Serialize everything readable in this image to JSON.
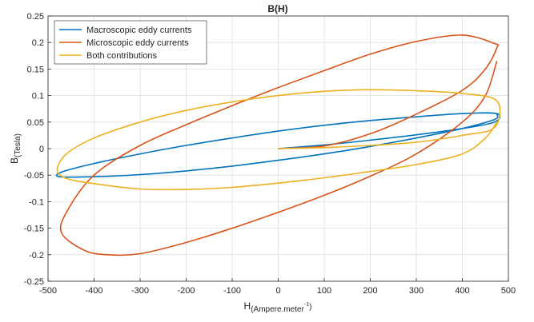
{
  "chart_data": {
    "type": "line",
    "title": "B(H)",
    "xlabel": {
      "main": "H",
      "sub": "(Ampere.meter",
      "sup": "-1",
      "close": ")"
    },
    "ylabel": {
      "main": "B",
      "sub": "(Tesla)"
    },
    "xlim": [
      -500,
      500
    ],
    "ylim": [
      -0.25,
      0.25
    ],
    "xticks": [
      -500,
      -400,
      -300,
      -200,
      -100,
      0,
      100,
      200,
      300,
      400,
      500
    ],
    "xtick_labels": [
      "-500",
      "-400",
      "-300",
      "-200",
      "-100",
      "0",
      "100",
      "200",
      "300",
      "400",
      "500"
    ],
    "yticks": [
      -0.25,
      -0.2,
      -0.15,
      -0.1,
      -0.05,
      0,
      0.05,
      0.1,
      0.15,
      0.2,
      0.25
    ],
    "ytick_labels": [
      "-0.25",
      "-0.2",
      "-0.15",
      "-0.1",
      "-0.05",
      "0",
      "0.05",
      "0.1",
      "0.15",
      "0.2",
      "0.25"
    ],
    "grid": true,
    "legend_position": "top-left",
    "series": [
      {
        "name": "Macroscopic eddy currents",
        "color": "#0072BD",
        "x": [
          0,
          100,
          200,
          300,
          400,
          470,
          475,
          400,
          300,
          200,
          100,
          0,
          -100,
          -200,
          -300,
          -400,
          -470,
          -475,
          -400,
          -300,
          -200,
          -100,
          0,
          100,
          200,
          300,
          400,
          470,
          475
        ],
        "y": [
          0,
          0.007,
          0.016,
          0.026,
          0.038,
          0.05,
          0.066,
          0.066,
          0.06,
          0.053,
          0.044,
          0.033,
          0.02,
          0.006,
          -0.01,
          -0.028,
          -0.044,
          -0.053,
          -0.053,
          -0.049,
          -0.042,
          -0.033,
          -0.022,
          -0.01,
          0.004,
          0.02,
          0.038,
          0.055,
          0.065
        ]
      },
      {
        "name": "Microscopic eddy currents",
        "color": "#D95319",
        "x": [
          0,
          100,
          200,
          300,
          400,
          450,
          475,
          470,
          400,
          300,
          200,
          100,
          0,
          -100,
          -200,
          -300,
          -400,
          -460,
          -470,
          -420,
          -370,
          -300,
          -200,
          -100,
          0,
          100,
          200,
          300,
          400,
          450,
          475
        ],
        "y": [
          0,
          0.005,
          0.028,
          0.065,
          0.11,
          0.15,
          0.19,
          0.198,
          0.214,
          0.202,
          0.178,
          0.147,
          0.115,
          0.081,
          0.045,
          0.006,
          -0.05,
          -0.12,
          -0.16,
          -0.192,
          -0.2,
          -0.198,
          -0.177,
          -0.15,
          -0.12,
          -0.088,
          -0.052,
          -0.01,
          0.05,
          0.1,
          0.165
        ]
      },
      {
        "name": "Both contributions",
        "color": "#EDB120",
        "x": [
          0,
          100,
          200,
          300,
          400,
          470,
          475,
          400,
          300,
          200,
          100,
          0,
          -100,
          -200,
          -300,
          -400,
          -460,
          -480,
          -460,
          -400,
          -300,
          -200,
          -100,
          0,
          100,
          200,
          300,
          400,
          450,
          475
        ],
        "y": [
          0,
          0.002,
          0.006,
          0.012,
          0.025,
          0.04,
          0.09,
          0.104,
          0.109,
          0.111,
          0.108,
          0.1,
          0.088,
          0.072,
          0.05,
          0.02,
          -0.01,
          -0.04,
          -0.056,
          -0.066,
          -0.076,
          -0.077,
          -0.073,
          -0.065,
          -0.055,
          -0.043,
          -0.03,
          -0.01,
          0.02,
          0.05
        ]
      }
    ]
  }
}
